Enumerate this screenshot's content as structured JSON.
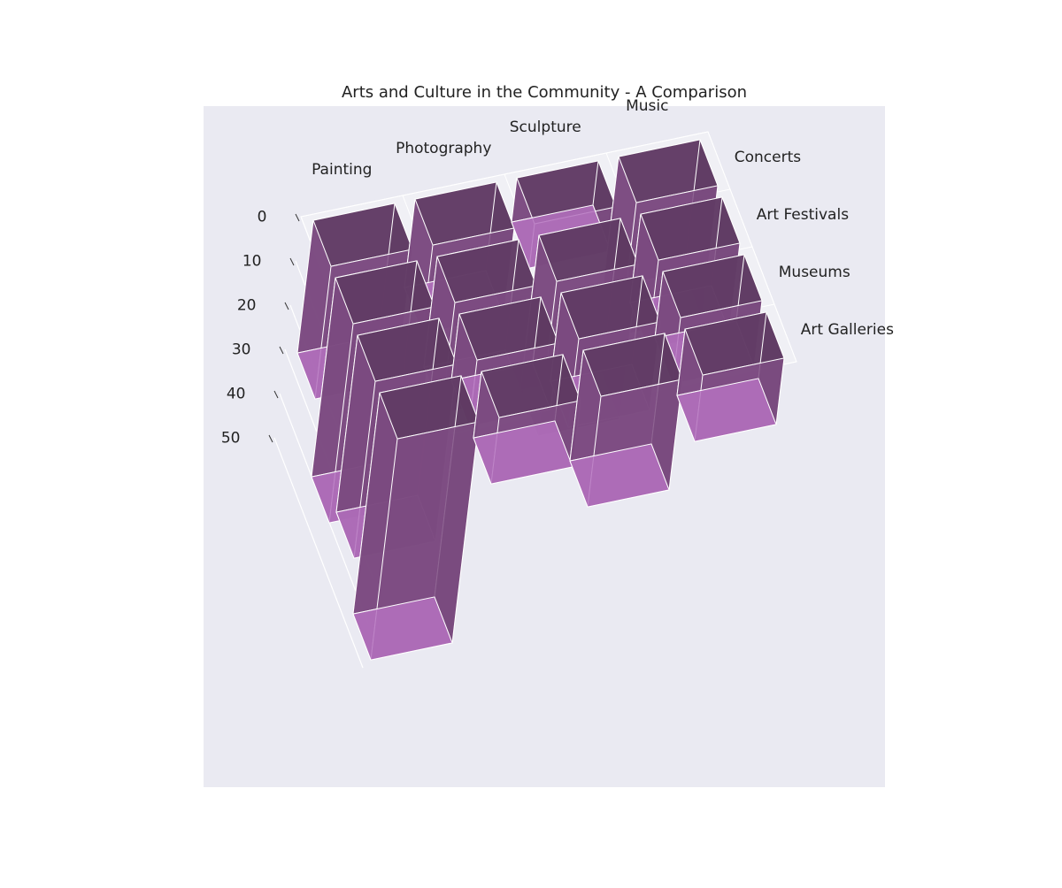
{
  "chart_data": {
    "type": "bar3d",
    "title": "Arts and Culture in the Community - A Comparison",
    "categories": [
      "Painting",
      "Photography",
      "Sculpture",
      "Music"
    ],
    "series": [
      {
        "name": "Concerts",
        "values": [
          30,
          20,
          10,
          30
        ]
      },
      {
        "name": "Art Festivals",
        "values": [
          45,
          25,
          35,
          20
        ]
      },
      {
        "name": "Museums",
        "values": [
          40,
          15,
          20,
          15
        ]
      },
      {
        "name": "Art Galleries",
        "values": [
          50,
          15,
          25,
          15
        ]
      }
    ],
    "color": "#7b4a80",
    "top_color": "#5e3a62",
    "end_color": "#b36fbd",
    "zlim": [
      0,
      50
    ],
    "zticks": [
      0,
      10,
      20,
      30,
      40,
      50
    ]
  }
}
